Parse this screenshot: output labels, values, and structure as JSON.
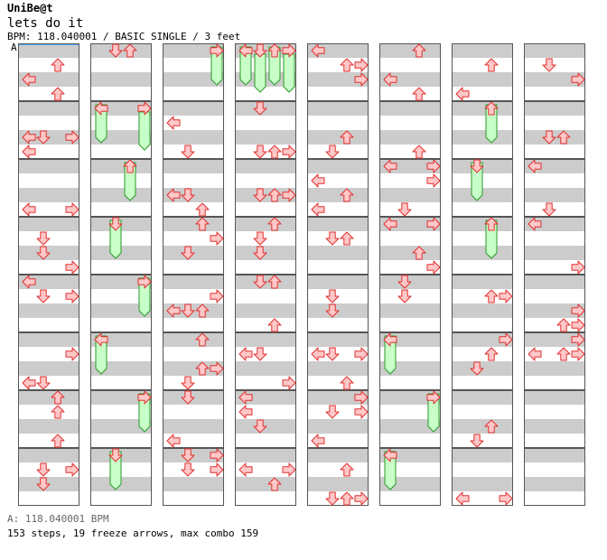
{
  "app": {
    "name": "UniBe@t"
  },
  "song": {
    "title": "lets do it"
  },
  "meta": {
    "text": "BPM: 118.040001 / BASIC SINGLE / 3 feet"
  },
  "marker": {
    "label": "A"
  },
  "footer": {
    "bpm": "A: 118.040001 BPM",
    "stats": "153 steps, 19 freeze arrows, max combo 159"
  },
  "colors": {
    "stripe": "#cccccc",
    "arrow_fill": "#ffc8c8",
    "arrow_stroke": "#e03030",
    "freeze_fill": "#c8ffc8",
    "freeze_stroke": "#2a9a2a"
  },
  "chart_data": {
    "type": "step-chart",
    "lanes": [
      "left",
      "down",
      "up",
      "right"
    ],
    "columns": 8,
    "measures_per_column": 8,
    "column_measure_start": [
      1,
      9,
      17,
      25,
      33,
      41,
      49,
      57
    ],
    "freeze_arrows": [
      {
        "column": 3,
        "lane": "right",
        "from_measure": 1,
        "to_measure": 1
      },
      {
        "column": 4,
        "lane": "left",
        "from_measure": 1,
        "to_measure": 1
      },
      {
        "column": 2,
        "lane": "left",
        "from_measure": 2,
        "to_measure": 2
      },
      {
        "column": 2,
        "lane": "right",
        "from_measure": 2,
        "to_measure": 2
      },
      {
        "column": 2,
        "lane": "up",
        "from_measure": 3,
        "to_measure": 3
      },
      {
        "column": 7,
        "lane": "up",
        "from_measure": 2,
        "to_measure": 2
      },
      {
        "column": 7,
        "lane": "down",
        "from_measure": 3,
        "to_measure": 3
      },
      {
        "column": 2,
        "lane": "down",
        "from_measure": 4,
        "to_measure": 4
      },
      {
        "column": 7,
        "lane": "up",
        "from_measure": 4,
        "to_measure": 4
      },
      {
        "column": 2,
        "lane": "right",
        "from_measure": 5,
        "to_measure": 5
      },
      {
        "column": 2,
        "lane": "left",
        "from_measure": 6,
        "to_measure": 6
      },
      {
        "column": 6,
        "lane": "left",
        "from_measure": 6,
        "to_measure": 6
      },
      {
        "column": 2,
        "lane": "right",
        "from_measure": 7,
        "to_measure": 7
      },
      {
        "column": 6,
        "lane": "right",
        "from_measure": 7,
        "to_measure": 7
      },
      {
        "column": 2,
        "lane": "down",
        "from_measure": 8,
        "to_measure": 8
      },
      {
        "column": 6,
        "lane": "left",
        "from_measure": 8,
        "to_measure": 8
      },
      {
        "column": 4,
        "lane": "down",
        "from_measure": 1,
        "to_measure": 1
      },
      {
        "column": 4,
        "lane": "up",
        "from_measure": 1,
        "to_measure": 1
      },
      {
        "column": 4,
        "lane": "right",
        "from_measure": 1,
        "to_measure": 1
      }
    ]
  }
}
